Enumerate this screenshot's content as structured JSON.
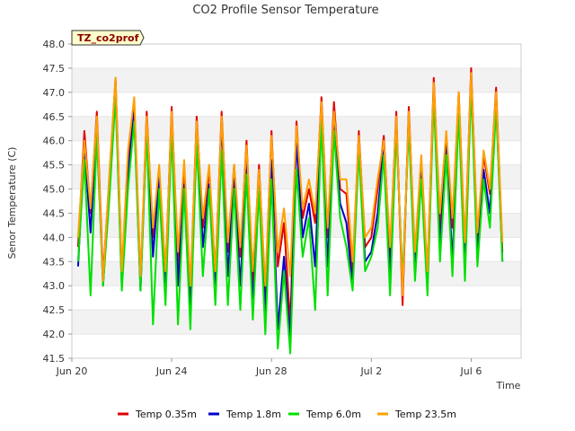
{
  "chart_data": {
    "type": "line",
    "title": "CO2 Profile Sensor Temperature",
    "xlabel": "Time",
    "ylabel": "Senor Temperature (C)",
    "badge": "TZ_co2prof",
    "xlim": [
      "2023-06-20",
      "2023-07-08"
    ],
    "ylim": [
      41.5,
      48.0
    ],
    "yticks": [
      41.5,
      42.0,
      42.5,
      43.0,
      43.5,
      44.0,
      44.5,
      45.0,
      45.5,
      46.0,
      46.5,
      47.0,
      47.5,
      48.0
    ],
    "ytick_labels": [
      "41.5",
      "42.0",
      "42.5",
      "43.0",
      "43.5",
      "44.0",
      "44.5",
      "45.0",
      "45.5",
      "46.0",
      "46.5",
      "47.0",
      "47.5",
      "48.0"
    ],
    "xticks": [
      "2023-06-20",
      "2023-06-24",
      "2023-06-28",
      "2023-07-02",
      "2023-07-06"
    ],
    "xtick_labels": [
      "Jun 20",
      "Jun 24",
      "Jun 28",
      "Jul 2",
      "Jul 6"
    ],
    "grid": "horizontal-bands",
    "legend_position": "bottom-center",
    "series": [
      {
        "name": "Temp 0.35m",
        "color": "#e00000",
        "x": [
          "2023-06-20 06:00",
          "2023-06-20 12:00",
          "2023-06-20 18:00",
          "2023-06-21 00:00",
          "2023-06-21 06:00",
          "2023-06-21 12:00",
          "2023-06-21 18:00",
          "2023-06-22 00:00",
          "2023-06-22 06:00",
          "2023-06-22 12:00",
          "2023-06-22 18:00",
          "2023-06-23 00:00",
          "2023-06-23 06:00",
          "2023-06-23 12:00",
          "2023-06-23 18:00",
          "2023-06-24 00:00",
          "2023-06-24 06:00",
          "2023-06-24 12:00",
          "2023-06-24 18:00",
          "2023-06-25 00:00",
          "2023-06-25 06:00",
          "2023-06-25 12:00",
          "2023-06-25 18:00",
          "2023-06-26 00:00",
          "2023-06-26 06:00",
          "2023-06-26 12:00",
          "2023-06-26 18:00",
          "2023-06-27 00:00",
          "2023-06-27 06:00",
          "2023-06-27 12:00",
          "2023-06-27 18:00",
          "2023-06-28 00:00",
          "2023-06-28 06:00",
          "2023-06-28 12:00",
          "2023-06-28 18:00",
          "2023-06-29 00:00",
          "2023-06-29 06:00",
          "2023-06-29 12:00",
          "2023-06-29 18:00",
          "2023-06-30 00:00",
          "2023-06-30 06:00",
          "2023-06-30 12:00",
          "2023-06-30 18:00",
          "2023-07-01 00:00",
          "2023-07-01 06:00",
          "2023-07-01 12:00",
          "2023-07-01 18:00",
          "2023-07-02 00:00",
          "2023-07-02 06:00",
          "2023-07-02 12:00",
          "2023-07-02 18:00",
          "2023-07-03 00:00",
          "2023-07-03 06:00",
          "2023-07-03 12:00",
          "2023-07-03 18:00",
          "2023-07-04 00:00",
          "2023-07-04 06:00",
          "2023-07-04 12:00",
          "2023-07-04 18:00",
          "2023-07-05 00:00",
          "2023-07-05 06:00",
          "2023-07-05 12:00",
          "2023-07-05 18:00",
          "2023-07-06 00:00",
          "2023-07-06 06:00",
          "2023-07-06 12:00",
          "2023-07-06 18:00",
          "2023-07-07 00:00",
          "2023-07-07 06:00"
        ],
        "y": [
          43.8,
          46.2,
          44.5,
          46.6,
          43.2,
          45.2,
          47.3,
          43.2,
          45.6,
          46.8,
          43.0,
          46.6,
          44.0,
          45.3,
          43.2,
          46.7,
          43.4,
          45.5,
          42.8,
          46.5,
          44.2,
          45.4,
          43.2,
          46.6,
          43.7,
          45.5,
          43.6,
          46.0,
          43.0,
          45.5,
          42.8,
          46.2,
          43.4,
          44.3,
          42.2,
          46.4,
          44.4,
          45.0,
          44.3,
          46.9,
          44.0,
          46.8,
          45.0,
          44.9,
          43.2,
          46.2,
          43.8,
          44.0,
          45.0,
          46.1,
          43.6,
          46.6,
          42.6,
          46.7,
          43.5,
          45.6,
          43.2,
          47.3,
          44.2,
          46.1,
          44.2,
          47.0,
          43.7,
          47.5,
          43.9,
          45.7,
          44.9,
          47.1,
          43.7
        ]
      },
      {
        "name": "Temp 1.8m",
        "color": "#0000cc",
        "x": [
          "2023-06-20 06:00",
          "2023-06-20 12:00",
          "2023-06-20 18:00",
          "2023-06-21 00:00",
          "2023-06-21 06:00",
          "2023-06-21 12:00",
          "2023-06-21 18:00",
          "2023-06-22 00:00",
          "2023-06-22 06:00",
          "2023-06-22 12:00",
          "2023-06-22 18:00",
          "2023-06-23 00:00",
          "2023-06-23 06:00",
          "2023-06-23 12:00",
          "2023-06-23 18:00",
          "2023-06-24 00:00",
          "2023-06-24 06:00",
          "2023-06-24 12:00",
          "2023-06-24 18:00",
          "2023-06-25 00:00",
          "2023-06-25 06:00",
          "2023-06-25 12:00",
          "2023-06-25 18:00",
          "2023-06-26 00:00",
          "2023-06-26 06:00",
          "2023-06-26 12:00",
          "2023-06-26 18:00",
          "2023-06-27 00:00",
          "2023-06-27 06:00",
          "2023-06-27 12:00",
          "2023-06-27 18:00",
          "2023-06-28 00:00",
          "2023-06-28 06:00",
          "2023-06-28 12:00",
          "2023-06-28 18:00",
          "2023-06-29 00:00",
          "2023-06-29 06:00",
          "2023-06-29 12:00",
          "2023-06-29 18:00",
          "2023-06-30 00:00",
          "2023-06-30 06:00",
          "2023-06-30 12:00",
          "2023-06-30 18:00",
          "2023-07-01 00:00",
          "2023-07-01 06:00",
          "2023-07-01 12:00",
          "2023-07-01 18:00",
          "2023-07-02 00:00",
          "2023-07-02 06:00",
          "2023-07-02 12:00",
          "2023-07-02 18:00",
          "2023-07-03 00:00",
          "2023-07-03 06:00",
          "2023-07-03 12:00",
          "2023-07-03 18:00",
          "2023-07-04 00:00",
          "2023-07-04 06:00",
          "2023-07-04 12:00",
          "2023-07-04 18:00",
          "2023-07-05 00:00",
          "2023-07-05 06:00",
          "2023-07-05 12:00",
          "2023-07-05 18:00",
          "2023-07-06 00:00",
          "2023-07-06 06:00",
          "2023-07-06 12:00",
          "2023-07-06 18:00",
          "2023-07-07 00:00",
          "2023-07-07 06:00"
        ],
        "y": [
          43.4,
          45.9,
          44.1,
          46.3,
          43.0,
          45.0,
          47.1,
          43.0,
          45.3,
          46.6,
          42.9,
          46.4,
          43.6,
          45.3,
          43.0,
          46.4,
          43.0,
          45.1,
          42.5,
          46.3,
          43.8,
          45.1,
          43.0,
          46.4,
          43.2,
          45.2,
          43.0,
          45.6,
          42.6,
          45.2,
          42.4,
          45.6,
          42.1,
          43.6,
          41.9,
          46.0,
          44.0,
          44.7,
          43.4,
          46.6,
          43.4,
          46.4,
          44.7,
          44.3,
          43.0,
          46.0,
          43.5,
          43.7,
          44.5,
          45.9,
          43.2,
          46.4,
          42.9,
          46.5,
          43.3,
          45.4,
          43.0,
          47.1,
          43.8,
          45.9,
          43.5,
          46.8,
          43.3,
          47.3,
          43.6,
          45.4,
          44.5,
          46.9,
          43.5
        ]
      },
      {
        "name": "Temp 6.0m",
        "color": "#00e000",
        "x": [
          "2023-06-20 06:00",
          "2023-06-20 12:00",
          "2023-06-20 18:00",
          "2023-06-21 00:00",
          "2023-06-21 06:00",
          "2023-06-21 12:00",
          "2023-06-21 18:00",
          "2023-06-22 00:00",
          "2023-06-22 06:00",
          "2023-06-22 12:00",
          "2023-06-22 18:00",
          "2023-06-23 00:00",
          "2023-06-23 06:00",
          "2023-06-23 12:00",
          "2023-06-23 18:00",
          "2023-06-24 00:00",
          "2023-06-24 06:00",
          "2023-06-24 12:00",
          "2023-06-24 18:00",
          "2023-06-25 00:00",
          "2023-06-25 06:00",
          "2023-06-25 12:00",
          "2023-06-25 18:00",
          "2023-06-26 00:00",
          "2023-06-26 06:00",
          "2023-06-26 12:00",
          "2023-06-26 18:00",
          "2023-06-27 00:00",
          "2023-06-27 06:00",
          "2023-06-27 12:00",
          "2023-06-27 18:00",
          "2023-06-28 00:00",
          "2023-06-28 06:00",
          "2023-06-28 12:00",
          "2023-06-28 18:00",
          "2023-06-29 00:00",
          "2023-06-29 06:00",
          "2023-06-29 12:00",
          "2023-06-29 18:00",
          "2023-06-30 00:00",
          "2023-06-30 06:00",
          "2023-06-30 12:00",
          "2023-06-30 18:00",
          "2023-07-01 00:00",
          "2023-07-01 06:00",
          "2023-07-01 12:00",
          "2023-07-01 18:00",
          "2023-07-02 00:00",
          "2023-07-02 06:00",
          "2023-07-02 12:00",
          "2023-07-02 18:00",
          "2023-07-03 00:00",
          "2023-07-03 06:00",
          "2023-07-03 12:00",
          "2023-07-03 18:00",
          "2023-07-04 00:00",
          "2023-07-04 06:00",
          "2023-07-04 12:00",
          "2023-07-04 18:00",
          "2023-07-05 00:00",
          "2023-07-05 06:00",
          "2023-07-05 12:00",
          "2023-07-05 18:00",
          "2023-07-06 00:00",
          "2023-07-06 06:00",
          "2023-07-06 12:00",
          "2023-07-06 18:00",
          "2023-07-07 00:00",
          "2023-07-07 06:00"
        ],
        "y": [
          43.5,
          45.6,
          42.8,
          46.1,
          43.0,
          44.8,
          46.9,
          42.9,
          45.0,
          46.4,
          42.9,
          46.2,
          42.2,
          45.0,
          42.6,
          46.2,
          42.2,
          45.0,
          42.1,
          46.0,
          43.2,
          45.0,
          42.6,
          45.8,
          42.6,
          45.0,
          42.5,
          45.3,
          42.3,
          45.0,
          42.0,
          45.2,
          41.7,
          43.3,
          41.6,
          45.4,
          43.6,
          44.4,
          42.5,
          46.4,
          42.8,
          46.2,
          44.4,
          43.8,
          42.9,
          45.8,
          43.3,
          43.6,
          44.2,
          45.7,
          42.8,
          46.2,
          43.1,
          46.3,
          43.1,
          45.2,
          42.8,
          46.9,
          43.5,
          45.7,
          43.2,
          46.6,
          43.1,
          47.1,
          43.4,
          45.2,
          44.2,
          46.7,
          43.5
        ]
      },
      {
        "name": "Temp 23.5m",
        "color": "#ffa000",
        "x": [
          "2023-06-20 06:00",
          "2023-06-20 12:00",
          "2023-06-20 18:00",
          "2023-06-21 00:00",
          "2023-06-21 06:00",
          "2023-06-21 12:00",
          "2023-06-21 18:00",
          "2023-06-22 00:00",
          "2023-06-22 06:00",
          "2023-06-22 12:00",
          "2023-06-22 18:00",
          "2023-06-23 00:00",
          "2023-06-23 06:00",
          "2023-06-23 12:00",
          "2023-06-23 18:00",
          "2023-06-24 00:00",
          "2023-06-24 06:00",
          "2023-06-24 12:00",
          "2023-06-24 18:00",
          "2023-06-25 00:00",
          "2023-06-25 06:00",
          "2023-06-25 12:00",
          "2023-06-25 18:00",
          "2023-06-26 00:00",
          "2023-06-26 06:00",
          "2023-06-26 12:00",
          "2023-06-26 18:00",
          "2023-06-27 00:00",
          "2023-06-27 06:00",
          "2023-06-27 12:00",
          "2023-06-27 18:00",
          "2023-06-28 00:00",
          "2023-06-28 06:00",
          "2023-06-28 12:00",
          "2023-06-28 18:00",
          "2023-06-29 00:00",
          "2023-06-29 06:00",
          "2023-06-29 12:00",
          "2023-06-29 18:00",
          "2023-06-30 00:00",
          "2023-06-30 06:00",
          "2023-06-30 12:00",
          "2023-06-30 18:00",
          "2023-07-01 00:00",
          "2023-07-01 06:00",
          "2023-07-01 12:00",
          "2023-07-01 18:00",
          "2023-07-02 00:00",
          "2023-07-02 06:00",
          "2023-07-02 12:00",
          "2023-07-02 18:00",
          "2023-07-03 00:00",
          "2023-07-03 06:00",
          "2023-07-03 12:00",
          "2023-07-03 18:00",
          "2023-07-04 00:00",
          "2023-07-04 06:00",
          "2023-07-04 12:00",
          "2023-07-04 18:00",
          "2023-07-05 00:00",
          "2023-07-05 06:00",
          "2023-07-05 12:00",
          "2023-07-05 18:00",
          "2023-07-06 00:00",
          "2023-07-06 06:00",
          "2023-07-06 12:00",
          "2023-07-06 18:00",
          "2023-07-07 00:00",
          "2023-07-07 06:00"
        ],
        "y": [
          44.0,
          46.0,
          44.6,
          46.5,
          43.1,
          45.3,
          47.3,
          43.3,
          45.8,
          46.9,
          43.2,
          46.5,
          44.2,
          45.5,
          43.3,
          46.6,
          43.7,
          45.6,
          43.0,
          46.4,
          44.4,
          45.5,
          43.3,
          46.5,
          43.9,
          45.5,
          43.8,
          45.9,
          43.3,
          45.4,
          43.0,
          46.1,
          43.7,
          44.6,
          43.2,
          46.3,
          44.6,
          45.2,
          44.5,
          46.8,
          44.2,
          46.6,
          45.2,
          45.2,
          43.5,
          46.1,
          44.0,
          44.2,
          45.2,
          46.0,
          43.8,
          46.5,
          42.8,
          46.6,
          43.7,
          45.7,
          43.3,
          47.2,
          44.5,
          46.2,
          44.4,
          47.0,
          43.9,
          47.4,
          44.1,
          45.8,
          45.0,
          47.0,
          43.9
        ]
      }
    ]
  }
}
